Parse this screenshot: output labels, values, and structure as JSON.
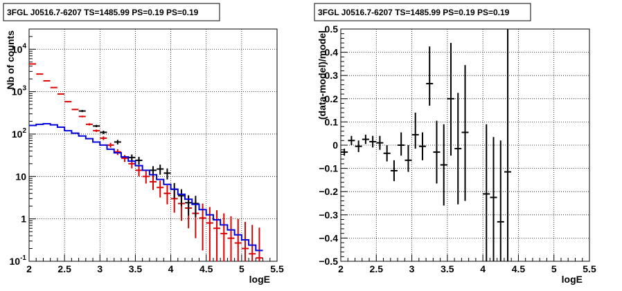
{
  "chart_data": [
    {
      "type": "scatter",
      "title": "3FGL J0516.7-6207 TS=1485.99 PS=0.19 PS=0.19",
      "xlabel": "logE",
      "ylabel": "Nb of counts",
      "xlim": [
        2,
        5.5
      ],
      "ylim": [
        0.1,
        30000
      ],
      "yscale": "log",
      "grid": true,
      "x_ticks": [
        "2",
        "2.5",
        "3",
        "3.5",
        "4",
        "4.5",
        "5",
        "5.5"
      ],
      "y_ticks": [
        {
          "label": "10",
          "exp": "-1",
          "value": 0.1
        },
        {
          "label": "1",
          "exp": "",
          "value": 1
        },
        {
          "label": "10",
          "exp": "",
          "value": 10
        },
        {
          "label": "10",
          "exp": "2",
          "value": 100
        },
        {
          "label": "10",
          "exp": "3",
          "value": 1000
        },
        {
          "label": "10",
          "exp": "4",
          "value": 10000
        }
      ],
      "colors": {
        "model_points": "#dd0000",
        "data_points": "#000000",
        "histogram": "#0000dd"
      },
      "series": [
        {
          "style": "red-errorbars",
          "x": [
            2.05,
            2.15,
            2.25,
            2.35,
            2.45,
            2.55,
            2.65,
            2.75,
            2.85,
            2.95,
            3.05,
            3.15,
            3.25,
            3.35,
            3.45,
            3.55,
            3.65,
            3.75,
            3.85,
            3.95,
            4.05,
            4.15,
            4.25,
            4.35,
            4.45,
            4.55,
            4.65,
            4.75,
            4.85,
            4.95,
            5.05,
            5.15,
            5.25
          ],
          "y": [
            4500,
            2600,
            1800,
            1250,
            880,
            580,
            380,
            260,
            170,
            120,
            80,
            55,
            38,
            27,
            20,
            14,
            10,
            7.5,
            5.5,
            4,
            3,
            2.3,
            1.8,
            1.35,
            1.05,
            0.8,
            0.6,
            0.45,
            0.35,
            0.27,
            0.2,
            0.15,
            0.12
          ],
          "ylo": [
            4400,
            2550,
            1760,
            1220,
            860,
            560,
            365,
            248,
            160,
            112,
            72,
            48,
            32,
            22,
            15.5,
            10,
            6.8,
            4.8,
            3.2,
            2.2,
            1.4,
            0.9,
            0.6,
            0.35,
            0.18,
            0.1,
            0.1,
            0.1,
            0.1,
            0.1,
            0.1,
            0.1,
            0.1
          ],
          "yhi": [
            4600,
            2650,
            1840,
            1280,
            900,
            600,
            395,
            272,
            180,
            128,
            88,
            62,
            44,
            32,
            25,
            18.5,
            13.5,
            10.5,
            8,
            6.2,
            4.8,
            4,
            3.4,
            2.8,
            2.3,
            1.9,
            1.6,
            1.35,
            1.15,
            1,
            0.85,
            0.72,
            0.62
          ]
        },
        {
          "style": "black-errorbars",
          "x": [
            2.75,
            2.95,
            3.05,
            3.25,
            3.45,
            3.55,
            3.75,
            3.85,
            3.95,
            4.05,
            4.15,
            4.25,
            4.35
          ],
          "y": [
            350,
            155,
            110,
            65,
            28,
            24,
            14,
            15,
            12,
            5,
            3.5,
            2.4,
            2.3
          ],
          "ylo": [
            330,
            145,
            100,
            57,
            23,
            19,
            10.5,
            11,
            8.5,
            3,
            2,
            1.2,
            1.1
          ],
          "yhi": [
            370,
            165,
            120,
            73,
            33,
            29,
            17.5,
            19,
            15.5,
            7,
            5,
            3.6,
            3.5
          ]
        },
        {
          "style": "blue-histogram",
          "edges": [
            2.0,
            2.1,
            2.2,
            2.3,
            2.4,
            2.5,
            2.6,
            2.7,
            2.8,
            2.9,
            3.0,
            3.1,
            3.2,
            3.3,
            3.4,
            3.5,
            3.6,
            3.7,
            3.8,
            3.9,
            4.0,
            4.1,
            4.2,
            4.3,
            4.4,
            4.5,
            4.6,
            4.7,
            4.8,
            4.9,
            5.0,
            5.1,
            5.2,
            5.3
          ],
          "values": [
            160,
            170,
            175,
            165,
            145,
            120,
            105,
            90,
            78,
            65,
            55,
            44,
            36,
            29,
            23,
            18,
            14,
            11,
            8.5,
            6.5,
            5,
            3.8,
            2.9,
            2.2,
            1.65,
            1.25,
            0.95,
            0.72,
            0.55,
            0.42,
            0.32,
            0.24,
            0.18
          ]
        }
      ]
    },
    {
      "type": "scatter",
      "title": "3FGL J0516.7-6207 TS=1485.99 PS=0.19 PS=0.19",
      "xlabel": "logE",
      "ylabel": "(data-model)/model",
      "xlim": [
        2,
        5.5
      ],
      "ylim": [
        -0.5,
        0.5
      ],
      "grid": true,
      "x_ticks": [
        "2",
        "2.5",
        "3",
        "3.5",
        "4",
        "4.5",
        "5",
        "5.5"
      ],
      "y_ticks": [
        "-0.5",
        "-0.4",
        "-0.3",
        "-0.2",
        "-0.1",
        "0",
        "0.1",
        "0.2",
        "0.3",
        "0.4",
        "0.5"
      ],
      "series": [
        {
          "style": "black-errorbars",
          "x": [
            2.05,
            2.15,
            2.25,
            2.35,
            2.45,
            2.55,
            2.65,
            2.75,
            2.85,
            2.95,
            3.05,
            3.15,
            3.25,
            3.35,
            3.45,
            3.55,
            3.65,
            3.75,
            4.05,
            4.15,
            4.25,
            4.35
          ],
          "y": [
            -0.03,
            0.02,
            -0.005,
            0.025,
            0.015,
            0.01,
            -0.035,
            -0.11,
            0.0,
            -0.065,
            0.045,
            -0.005,
            0.265,
            -0.03,
            -0.085,
            0.2,
            -0.015,
            0.055,
            -0.21,
            -0.225,
            -0.33,
            -0.115
          ],
          "ylo": [
            -0.045,
            0.0,
            -0.03,
            0.005,
            -0.01,
            -0.02,
            -0.07,
            -0.155,
            -0.045,
            -0.115,
            -0.015,
            -0.065,
            0.17,
            -0.165,
            -0.26,
            -0.045,
            -0.255,
            -0.24,
            -0.5,
            -0.5,
            -0.5,
            -0.5
          ],
          "yhi": [
            -0.015,
            0.04,
            0.02,
            0.045,
            0.04,
            0.04,
            0.0,
            -0.065,
            0.055,
            0.0,
            0.14,
            0.055,
            0.425,
            0.105,
            0.09,
            0.44,
            0.225,
            0.345,
            0.09,
            0.035,
            0.02,
            0.5
          ]
        }
      ]
    }
  ]
}
